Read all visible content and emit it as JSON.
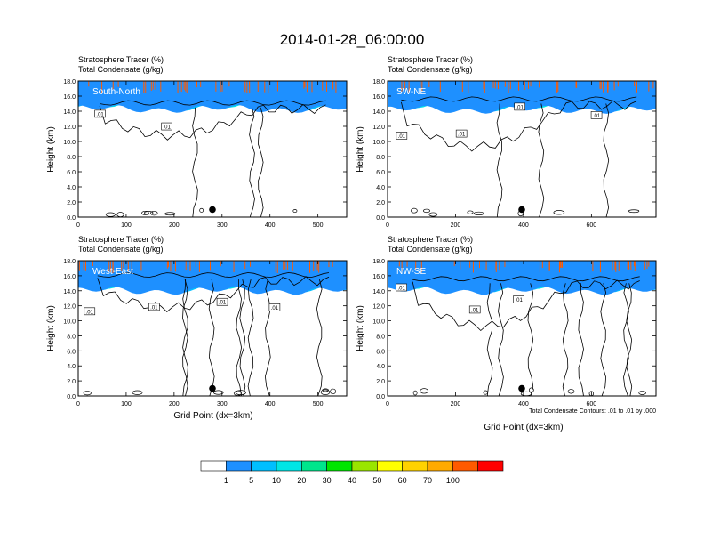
{
  "title": "2014-01-28_06:00:00",
  "contour_note": "Total Condensate Contours: .01 to .01 by .000",
  "colorbar": {
    "colors": [
      "#ffffff",
      "#1e90ff",
      "#00bfff",
      "#00e5e5",
      "#00e58c",
      "#00e500",
      "#9ae500",
      "#ffff00",
      "#ffd200",
      "#ffaa00",
      "#ff5a00",
      "#ff0000"
    ],
    "labels": [
      "1",
      "5",
      "10",
      "20",
      "30",
      "40",
      "50",
      "60",
      "70",
      "100"
    ]
  },
  "chart_data": [
    {
      "type": "heatmap",
      "line1": "Stratosphere Tracer   (%)",
      "line2": "Total Condensate   (g/kg)",
      "inset": "South-North",
      "ylabel": "Height (km)",
      "xlabel": "",
      "xlim": [
        0,
        560
      ],
      "ylim": [
        0,
        18
      ],
      "xticks": [
        "0",
        "100",
        "200",
        "300",
        "400",
        "500"
      ],
      "xtick_values": [
        0,
        100,
        200,
        300,
        400,
        500
      ],
      "yticks": [
        "0.0",
        "2.0",
        "4.0",
        "6.0",
        "8.0",
        "10.0",
        "12.0",
        "14.0",
        "16.0",
        "18.0"
      ],
      "contour_labels": [
        ".01",
        ".01"
      ],
      "marker_x": 280,
      "marker_y": 1.0,
      "tracer_base_km": 14.3,
      "cloud_top_km": 15.5
    },
    {
      "type": "heatmap",
      "line1": "Stratosphere Tracer   (%)",
      "line2": "Total Condensate   (g/kg)",
      "inset": "SW-NE",
      "ylabel": "Height (km)",
      "xlabel": "",
      "xlim": [
        0,
        790
      ],
      "ylim": [
        0,
        18
      ],
      "xticks": [
        "0",
        "200",
        "400",
        "600"
      ],
      "xtick_values": [
        0,
        200,
        400,
        600
      ],
      "yticks": [
        "0.0",
        "2.0",
        "4.0",
        "6.0",
        "8.0",
        "10.0",
        "12.0",
        "14.0",
        "16.0",
        "18.0"
      ],
      "contour_labels": [
        ".01",
        ".01",
        ".01",
        ".01"
      ],
      "marker_x": 395,
      "marker_y": 1.0,
      "tracer_base_km": 14.2,
      "cloud_top_km": 16.0
    },
    {
      "type": "heatmap",
      "line1": "Stratosphere Tracer   (%)",
      "line2": "Total Condensate   (g/kg)",
      "inset": "West-East",
      "ylabel": "Height (km)",
      "xlabel": "Grid Point (dx=3km)",
      "xlim": [
        0,
        560
      ],
      "ylim": [
        0,
        18
      ],
      "xticks": [
        "0",
        "100",
        "200",
        "300",
        "400",
        "500"
      ],
      "xtick_values": [
        0,
        100,
        200,
        300,
        400,
        500
      ],
      "yticks": [
        "0.0",
        "2.0",
        "4.0",
        "6.0",
        "8.0",
        "10.0",
        "12.0",
        "14.0",
        "16.0",
        "18.0"
      ],
      "contour_labels": [
        ".01",
        ".01",
        ".01",
        ".01"
      ],
      "marker_x": 280,
      "marker_y": 1.0,
      "tracer_base_km": 14.0,
      "cloud_top_km": 16.5
    },
    {
      "type": "heatmap",
      "line1": "Stratosphere Tracer   (%)",
      "line2": "Total Condensate   (g/kg)",
      "inset": "NW-SE",
      "ylabel": "Height (km)",
      "xlabel": "Grid Point (dx=3km)",
      "xlim": [
        0,
        790
      ],
      "ylim": [
        0,
        18
      ],
      "xticks": [
        "0",
        "200",
        "400",
        "600"
      ],
      "xtick_values": [
        0,
        200,
        400,
        600
      ],
      "yticks": [
        "0.0",
        "2.0",
        "4.0",
        "6.0",
        "8.0",
        "10.0",
        "12.0",
        "14.0",
        "16.0",
        "18.0"
      ],
      "contour_labels": [
        ".01",
        ".01",
        ".01"
      ],
      "marker_x": 395,
      "marker_y": 1.0,
      "tracer_base_km": 14.0,
      "cloud_top_km": 16.0
    }
  ]
}
